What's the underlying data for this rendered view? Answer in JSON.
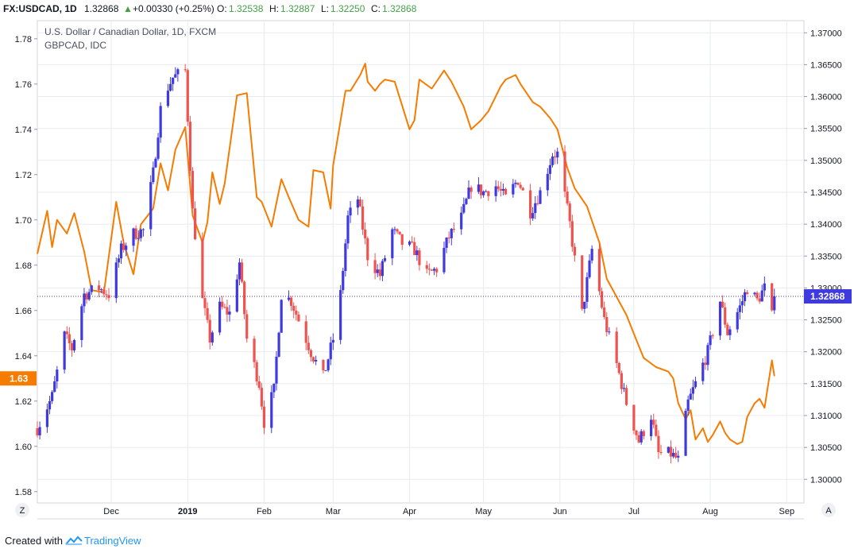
{
  "header": {
    "symbol": "FX:USDCAD, 1D",
    "last": "1.32868",
    "change": "+0.00330 (+0.25%)",
    "change_icon": "triangle-up-icon",
    "o_label": "O:",
    "o_value": "1.32538",
    "h_label": "H:",
    "h_value": "1.32887",
    "l_label": "L:",
    "l_value": "1.32250",
    "c_label": "C:",
    "c_value": "1.32868"
  },
  "legend": {
    "main_series": "U.S. Dollar / Canadian Dollar, 1D, FXCM",
    "compare_series": "GBPCAD, IDC"
  },
  "left_axis": {
    "ticks": [
      "1.78",
      "1.76",
      "1.74",
      "1.72",
      "1.70",
      "1.68",
      "1.66",
      "1.64",
      "1.62",
      "1.60",
      "1.58"
    ]
  },
  "right_axis": {
    "ticks": [
      "1.37000",
      "1.36500",
      "1.36000",
      "1.35500",
      "1.35000",
      "1.34500",
      "1.34000",
      "1.33500",
      "1.33000",
      "1.32500",
      "1.32000",
      "1.31500",
      "1.31000",
      "1.30500",
      "1.30000"
    ]
  },
  "x_axis": {
    "ticks": [
      "Dec",
      "2019",
      "Feb",
      "Mar",
      "Apr",
      "May",
      "Jun",
      "Jul",
      "Aug",
      "Sep"
    ]
  },
  "badges": {
    "left_label": "1.63",
    "right_label": "1.32868",
    "auto_scale": "Z",
    "log_scale": "A"
  },
  "footer": {
    "created_with": "Created with",
    "brand": "TradingView"
  },
  "colors": {
    "up": "#3f3ae0",
    "down": "#ef5350",
    "compare": "#f57c00",
    "grid": "#e7ebf0",
    "price_line": "#4a3b8f",
    "text": "#131722",
    "header_green": "#43a047",
    "left_badge": "#f57c00",
    "right_badge": "#3f3ae0"
  },
  "chart_data": {
    "type": "candlestick",
    "title": "U.S. Dollar / Canadian Dollar, 1D, FXCM",
    "x_range": [
      "2018-11-01",
      "2019-09-08"
    ],
    "ylim_right": [
      1.2963,
      1.3719
    ],
    "ylim_left": [
      1.575,
      1.788
    ],
    "grid": true,
    "main": {
      "name": "USDCAD",
      "anchors": [
        [
          "2018-11-01",
          1.308
        ],
        [
          "2018-11-07",
          1.313
        ],
        [
          "2018-11-12",
          1.3225
        ],
        [
          "2018-11-15",
          1.3205
        ],
        [
          "2018-11-20",
          1.329
        ],
        [
          "2018-11-26",
          1.33
        ],
        [
          "2018-11-30",
          1.329
        ],
        [
          "2018-12-05",
          1.336
        ],
        [
          "2018-12-10",
          1.3385
        ],
        [
          "2018-12-14",
          1.339
        ],
        [
          "2018-12-18",
          1.348
        ],
        [
          "2018-12-21",
          1.358
        ],
        [
          "2018-12-24",
          1.3615
        ],
        [
          "2018-12-26",
          1.363
        ],
        [
          "2018-12-31",
          1.364
        ],
        [
          "2019-01-03",
          1.342
        ],
        [
          "2019-01-07",
          1.328
        ],
        [
          "2019-01-10",
          1.322
        ],
        [
          "2019-01-14",
          1.327
        ],
        [
          "2019-01-18",
          1.326
        ],
        [
          "2019-01-22",
          1.334
        ],
        [
          "2019-01-25",
          1.322
        ],
        [
          "2019-01-30",
          1.315
        ],
        [
          "2019-02-01",
          1.309
        ],
        [
          "2019-02-05",
          1.314
        ],
        [
          "2019-02-08",
          1.329
        ],
        [
          "2019-02-12",
          1.328
        ],
        [
          "2019-02-15",
          1.325
        ],
        [
          "2019-02-20",
          1.32
        ],
        [
          "2019-02-25",
          1.316
        ],
        [
          "2019-03-01",
          1.322
        ],
        [
          "2019-03-04",
          1.329
        ],
        [
          "2019-03-07",
          1.341
        ],
        [
          "2019-03-11",
          1.344
        ],
        [
          "2019-03-15",
          1.335
        ],
        [
          "2019-03-20",
          1.332
        ],
        [
          "2019-03-25",
          1.339
        ],
        [
          "2019-03-29",
          1.337
        ],
        [
          "2019-04-03",
          1.336
        ],
        [
          "2019-04-08",
          1.332
        ],
        [
          "2019-04-12",
          1.333
        ],
        [
          "2019-04-17",
          1.338
        ],
        [
          "2019-04-22",
          1.341
        ],
        [
          "2019-04-26",
          1.346
        ],
        [
          "2019-05-01",
          1.345
        ],
        [
          "2019-05-06",
          1.346
        ],
        [
          "2019-05-10",
          1.344
        ],
        [
          "2019-05-15",
          1.347
        ],
        [
          "2019-05-20",
          1.342
        ],
        [
          "2019-05-24",
          1.345
        ],
        [
          "2019-05-29",
          1.351
        ],
        [
          "2019-05-31",
          1.351
        ],
        [
          "2019-06-05",
          1.34
        ],
        [
          "2019-06-10",
          1.326
        ],
        [
          "2019-06-14",
          1.336
        ],
        [
          "2019-06-19",
          1.325
        ],
        [
          "2019-06-24",
          1.318
        ],
        [
          "2019-06-28",
          1.312
        ],
        [
          "2019-07-03",
          1.306
        ],
        [
          "2019-07-08",
          1.31
        ],
        [
          "2019-07-11",
          1.304
        ],
        [
          "2019-07-16",
          1.304
        ],
        [
          "2019-07-19",
          1.303
        ],
        [
          "2019-07-23",
          1.312
        ],
        [
          "2019-07-26",
          1.315
        ],
        [
          "2019-07-31",
          1.32
        ],
        [
          "2019-08-05",
          1.328
        ],
        [
          "2019-08-08",
          1.323
        ],
        [
          "2019-08-13",
          1.327
        ],
        [
          "2019-08-16",
          1.33
        ],
        [
          "2019-08-20",
          1.328
        ],
        [
          "2019-08-23",
          1.33
        ],
        [
          "2019-08-26",
          1.3255
        ],
        [
          "2019-08-27",
          1.3287
        ]
      ]
    },
    "compare": {
      "name": "GBPCAD, IDC",
      "points": [
        [
          "2018-11-01",
          1.685
        ],
        [
          "2018-11-05",
          1.704
        ],
        [
          "2018-11-07",
          1.688
        ],
        [
          "2018-11-09",
          1.7
        ],
        [
          "2018-11-13",
          1.694
        ],
        [
          "2018-11-16",
          1.703
        ],
        [
          "2018-11-20",
          1.686
        ],
        [
          "2018-11-23",
          1.669
        ],
        [
          "2018-11-28",
          1.668
        ],
        [
          "2018-12-03",
          1.708
        ],
        [
          "2018-12-06",
          1.69
        ],
        [
          "2018-12-10",
          1.676
        ],
        [
          "2018-12-13",
          1.698
        ],
        [
          "2018-12-18",
          1.705
        ],
        [
          "2018-12-21",
          1.725
        ],
        [
          "2018-12-24",
          1.713
        ],
        [
          "2018-12-27",
          1.731
        ],
        [
          "2018-12-31",
          1.741
        ],
        [
          "2019-01-03",
          1.702
        ],
        [
          "2019-01-07",
          1.69
        ],
        [
          "2019-01-09",
          1.699
        ],
        [
          "2019-01-11",
          1.721
        ],
        [
          "2019-01-14",
          1.707
        ],
        [
          "2019-01-16",
          1.716
        ],
        [
          "2019-01-21",
          1.755
        ],
        [
          "2019-01-25",
          1.756
        ],
        [
          "2019-01-29",
          1.71
        ],
        [
          "2019-01-31",
          1.708
        ],
        [
          "2019-02-04",
          1.697
        ],
        [
          "2019-02-08",
          1.718
        ],
        [
          "2019-02-11",
          1.71
        ],
        [
          "2019-02-15",
          1.7
        ],
        [
          "2019-02-19",
          1.697
        ],
        [
          "2019-02-21",
          1.722
        ],
        [
          "2019-02-25",
          1.721
        ],
        [
          "2019-02-28",
          1.705
        ],
        [
          "2019-03-01",
          1.724
        ],
        [
          "2019-03-06",
          1.757
        ],
        [
          "2019-03-08",
          1.757
        ],
        [
          "2019-03-12",
          1.764
        ],
        [
          "2019-03-14",
          1.769
        ],
        [
          "2019-03-15",
          1.761
        ],
        [
          "2019-03-18",
          1.757
        ],
        [
          "2019-03-20",
          1.76
        ],
        [
          "2019-03-22",
          1.762
        ],
        [
          "2019-03-26",
          1.761
        ],
        [
          "2019-03-28",
          1.754
        ],
        [
          "2019-04-01",
          1.74
        ],
        [
          "2019-04-03",
          1.744
        ],
        [
          "2019-04-05",
          1.762
        ],
        [
          "2019-04-10",
          1.758
        ],
        [
          "2019-04-15",
          1.766
        ],
        [
          "2019-04-18",
          1.761
        ],
        [
          "2019-04-23",
          1.75
        ],
        [
          "2019-04-26",
          1.74
        ],
        [
          "2019-04-30",
          1.744
        ],
        [
          "2019-05-03",
          1.748
        ],
        [
          "2019-05-08",
          1.759
        ],
        [
          "2019-05-10",
          1.762
        ],
        [
          "2019-05-14",
          1.764
        ],
        [
          "2019-05-16",
          1.76
        ],
        [
          "2019-05-21",
          1.752
        ],
        [
          "2019-05-24",
          1.75
        ],
        [
          "2019-05-28",
          1.745
        ],
        [
          "2019-05-31",
          1.74
        ],
        [
          "2019-06-04",
          1.723
        ],
        [
          "2019-06-07",
          1.714
        ],
        [
          "2019-06-12",
          1.706
        ],
        [
          "2019-06-17",
          1.69
        ],
        [
          "2019-06-20",
          1.674
        ],
        [
          "2019-06-25",
          1.664
        ],
        [
          "2019-06-28",
          1.658
        ],
        [
          "2019-07-02",
          1.647
        ],
        [
          "2019-07-05",
          1.639
        ],
        [
          "2019-07-10",
          1.635
        ],
        [
          "2019-07-15",
          1.633
        ],
        [
          "2019-07-17",
          1.63
        ],
        [
          "2019-07-19",
          1.619
        ],
        [
          "2019-07-22",
          1.612
        ],
        [
          "2019-07-24",
          1.616
        ],
        [
          "2019-07-26",
          1.603
        ],
        [
          "2019-07-29",
          1.608
        ],
        [
          "2019-07-31",
          1.602
        ],
        [
          "2019-08-02",
          1.605
        ],
        [
          "2019-08-05",
          1.611
        ],
        [
          "2019-08-07",
          1.606
        ],
        [
          "2019-08-09",
          1.603
        ],
        [
          "2019-08-12",
          1.601
        ],
        [
          "2019-08-14",
          1.602
        ],
        [
          "2019-08-16",
          1.613
        ],
        [
          "2019-08-19",
          1.619
        ],
        [
          "2019-08-21",
          1.621
        ],
        [
          "2019-08-23",
          1.617
        ],
        [
          "2019-08-26",
          1.638
        ],
        [
          "2019-08-27",
          1.631
        ]
      ]
    }
  }
}
